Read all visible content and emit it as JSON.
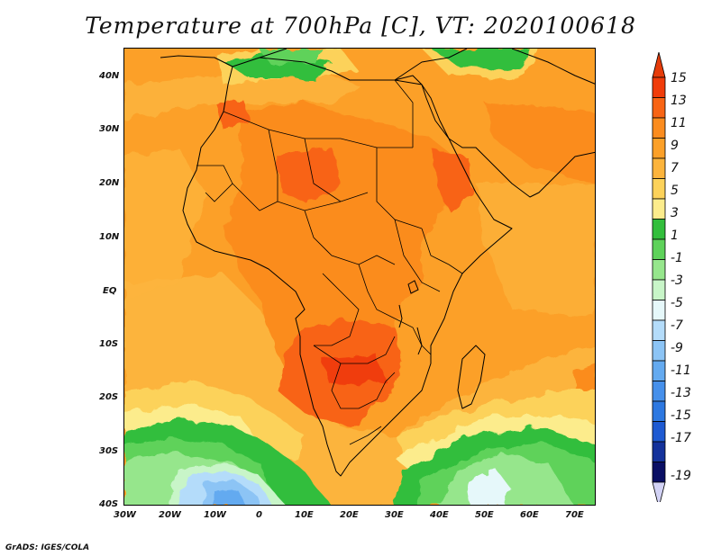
{
  "title": "Temperature at 700hPa [C], VT: 2020100618",
  "credit": "GrADS: IGES/COLA",
  "lat_labels": [
    "40N",
    "30N",
    "20N",
    "10N",
    "EQ",
    "10S",
    "20S",
    "30S",
    "40S"
  ],
  "lon_labels": [
    "30W",
    "20W",
    "10W",
    "0",
    "10E",
    "20E",
    "30E",
    "40E",
    "50E",
    "60E",
    "70E"
  ],
  "colorbar": {
    "labels": [
      "15",
      "13",
      "11",
      "9",
      "7",
      "5",
      "3",
      "1",
      "-1",
      "-3",
      "-5",
      "-7",
      "-9",
      "-11",
      "-13",
      "-15",
      "-17",
      "-19"
    ],
    "colors_top_to_bottom": [
      "#f03c0a",
      "#f86414",
      "#fb8c1e",
      "#fca028",
      "#fcb43c",
      "#fcd25a",
      "#fcec8c",
      "#32be3c",
      "#5ed25a",
      "#96e68c",
      "#c8f5c8",
      "#e6f8fa",
      "#b4dcfa",
      "#8cc4f5",
      "#64aaf0",
      "#4690eb",
      "#2d78e1",
      "#1e5ad2",
      "#14329b",
      "#0a0f64"
    ],
    "top_arrow_color": "#e63c0a",
    "bottom_arrow_color": "#d2d2f5"
  }
}
